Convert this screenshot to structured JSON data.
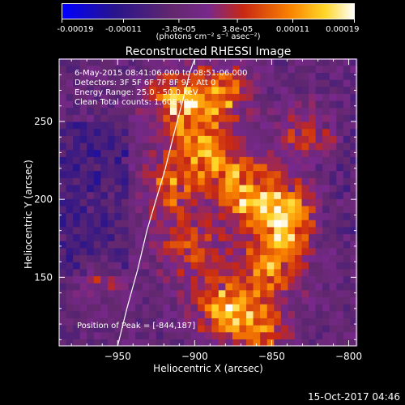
{
  "colorbar": {
    "tick_labels": [
      "-0.00019",
      "-0.00011",
      "-3.8e-05",
      "3.8e-05",
      "0.00011",
      "0.00019"
    ],
    "tick_values": [
      -0.00019,
      -0.00011,
      -3.8e-05,
      3.8e-05,
      0.00011,
      0.00019
    ],
    "range": [
      -0.00019,
      0.00019
    ],
    "units": "(photons cm⁻² s⁻¹ asec⁻²)"
  },
  "chart_data": {
    "type": "heatmap",
    "title": "Reconstructed RHESSI Image",
    "xlabel": "Heliocentric X (arcsec)",
    "ylabel": "Heliocentric Y (arcsec)",
    "xlim": [
      -988,
      -795
    ],
    "ylim": [
      106,
      290
    ],
    "x_ticks": [
      -950,
      -900,
      -850,
      -800
    ],
    "x_tick_labels": [
      "−950",
      "−900",
      "−850",
      "−800"
    ],
    "y_ticks": [
      150,
      200,
      250
    ],
    "y_tick_labels": [
      "150",
      "200",
      "250"
    ],
    "annotations": [
      "6-May-2015 08:41:06.000 to 08:51:06.000",
      "Detectors: 3F 5F 6F 7F 8F 9F, Att 0",
      "Energy Range: 25.0 - 50.0 keV",
      "Clean    Total counts: 1.60E+04"
    ],
    "peak_label": "Position of Peak = [-844,187]",
    "peak_position": [
      -844,
      187
    ],
    "limb": {
      "x": [
        -950,
        -944,
        -937,
        -931,
        -925,
        -919,
        -914,
        -910,
        -906,
        -903,
        -900
      ],
      "y": [
        106,
        130,
        155,
        180,
        200,
        220,
        240,
        255,
        270,
        282,
        290
      ]
    },
    "sources": [
      {
        "x": -908,
        "y": 262,
        "intensity": 0.00016,
        "sigma": 14
      },
      {
        "x": -880,
        "y": 270,
        "intensity": 0.00012,
        "sigma": 12
      },
      {
        "x": -895,
        "y": 230,
        "intensity": 0.00013,
        "sigma": 16
      },
      {
        "x": -866,
        "y": 205,
        "intensity": 0.00015,
        "sigma": 15
      },
      {
        "x": -840,
        "y": 190,
        "intensity": 0.00019,
        "sigma": 12
      },
      {
        "x": -850,
        "y": 160,
        "intensity": 0.00013,
        "sigma": 16
      },
      {
        "x": -880,
        "y": 130,
        "intensity": 0.00016,
        "sigma": 14
      },
      {
        "x": -905,
        "y": 170,
        "intensity": 0.0001,
        "sigma": 14
      },
      {
        "x": -918,
        "y": 205,
        "intensity": 0.0001,
        "sigma": 12
      },
      {
        "x": -825,
        "y": 240,
        "intensity": 8e-05,
        "sigma": 14
      },
      {
        "x": -960,
        "y": 150,
        "intensity": 6e-05,
        "sigma": 10
      },
      {
        "x": -855,
        "y": 118,
        "intensity": 0.00011,
        "sigma": 12
      }
    ]
  },
  "footer": {
    "timestamp": "15-Oct-2017 04:46"
  }
}
